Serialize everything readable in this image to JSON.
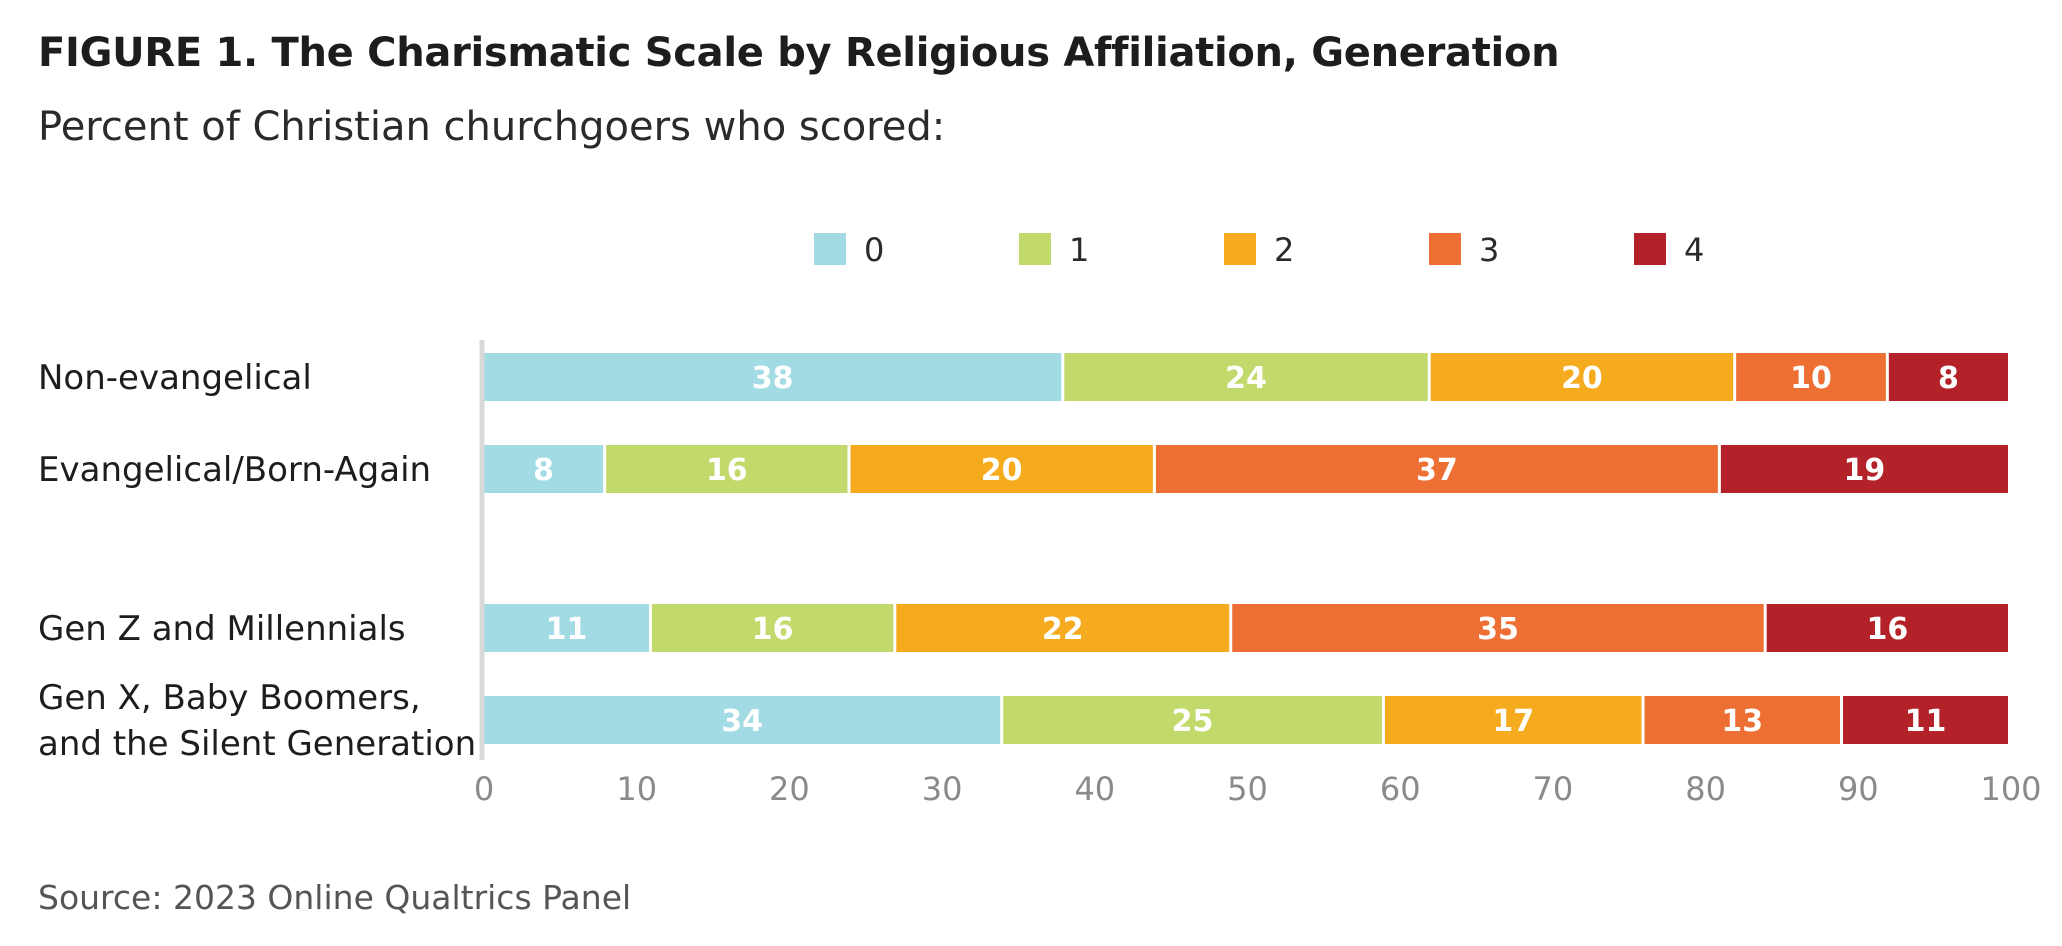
{
  "header": {
    "title": "FIGURE 1.  The Charismatic Scale by Religious Affiliation, Generation",
    "subtitle": "Percent of Christian churchgoers who scored:"
  },
  "footer": {
    "source": "Source: 2023 Online Qualtrics Panel"
  },
  "chart_data": {
    "type": "bar",
    "orientation": "horizontal",
    "stacked": true,
    "categories": [
      [
        "Non-evangelical"
      ],
      [
        "Evangelical/Born-Again"
      ],
      [
        "Gen Z and Millennials"
      ],
      [
        "Gen X, Baby Boomers,",
        "and the Silent Generation"
      ]
    ],
    "series": [
      {
        "name": "0",
        "color": "#a3dbe4",
        "values": [
          38,
          8,
          11,
          34
        ]
      },
      {
        "name": "1",
        "color": "#c2da6b",
        "values": [
          24,
          16,
          16,
          25
        ]
      },
      {
        "name": "2",
        "color": "#f6ab1e",
        "values": [
          20,
          20,
          22,
          17
        ]
      },
      {
        "name": "3",
        "color": "#ee6f34",
        "values": [
          10,
          37,
          35,
          13
        ]
      },
      {
        "name": "4",
        "color": "#b32228",
        "values": [
          8,
          19,
          16,
          11
        ]
      }
    ],
    "xlim": [
      0,
      100
    ],
    "xticks": [
      0,
      10,
      20,
      30,
      40,
      50,
      60,
      70,
      80,
      90,
      100
    ],
    "legend_position": "top",
    "grid": false
  }
}
